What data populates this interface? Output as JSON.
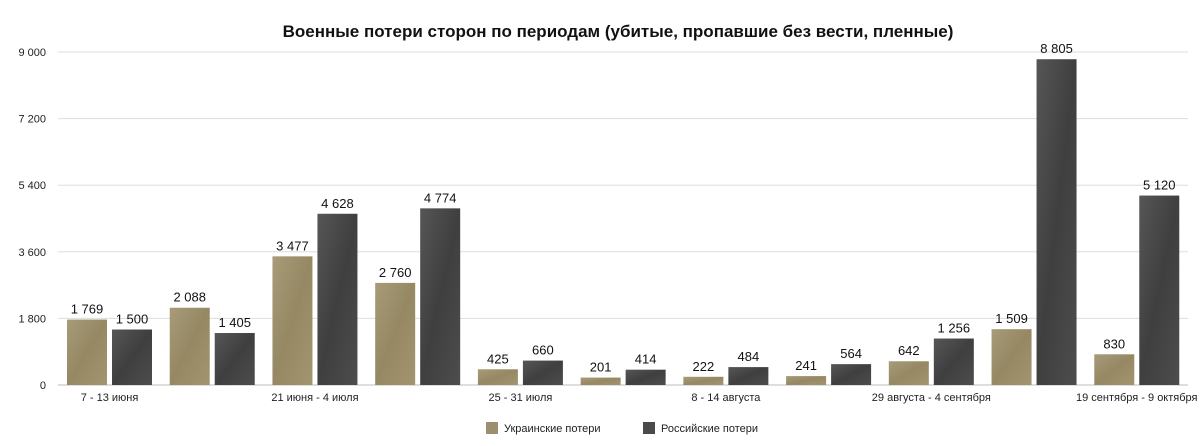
{
  "chart_data": {
    "type": "bar",
    "title": "Военные потери сторон по периодам (убитые, пропавшие без вести, пленные)",
    "xlabel": "",
    "ylabel": "",
    "ylim": [
      0,
      9000
    ],
    "yticks": [
      "0",
      "1 800",
      "3 600",
      "5 400",
      "7 200",
      "9 000"
    ],
    "ytick_values": [
      0,
      1800,
      3600,
      5400,
      7200,
      9000
    ],
    "grid": true,
    "legend_position": "bottom",
    "categories": [
      "7 - 13 июня",
      "",
      "21 июня - 4 июля",
      "",
      "25 - 31 июля",
      "",
      "8 - 14 августа",
      "",
      "29 августа - 4 сентября",
      "",
      "19 сентября - 9 октября"
    ],
    "series": [
      {
        "name": "Украинские потери",
        "color": "#9c8f6e",
        "values": [
          1769,
          2088,
          3477,
          2760,
          425,
          201,
          222,
          241,
          642,
          1509,
          830
        ],
        "labels": [
          "1 769",
          "2 088",
          "3 477",
          "2 760",
          "425",
          "201",
          "222",
          "241",
          "642",
          "1 509",
          "830"
        ]
      },
      {
        "name": "Российские потери",
        "color": "#4a4a4a",
        "values": [
          1500,
          1405,
          4628,
          4774,
          660,
          414,
          484,
          564,
          1256,
          8805,
          5120
        ],
        "labels": [
          "1 500",
          "1 405",
          "4 628",
          "4 774",
          "660",
          "414",
          "484",
          "564",
          "1 256",
          "8 805",
          "5 120"
        ]
      }
    ]
  }
}
